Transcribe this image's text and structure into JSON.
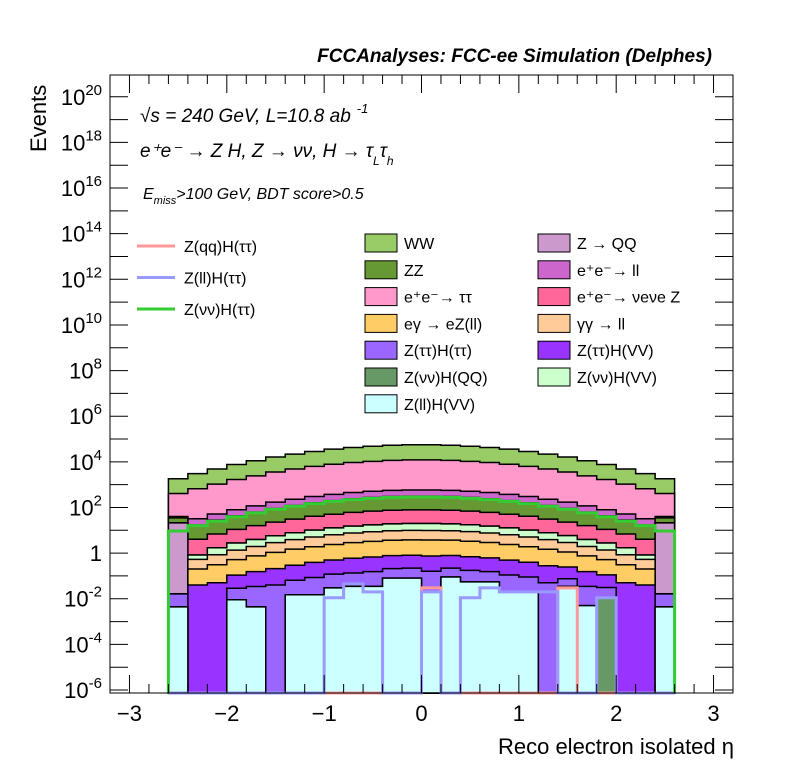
{
  "chart_data": {
    "type": "bar",
    "subtype": "stacked-histogram",
    "title": "FCCAnalyses: FCC-ee Simulation (Delphes)",
    "xlabel": "Reco electron isolated η",
    "ylabel": "Events",
    "xlim": [
      -3.2,
      3.2
    ],
    "ylim": [
      7.4e-07,
      9e+20
    ],
    "yscale": "log",
    "grid": false,
    "x_ticks": [
      "−3",
      "−2",
      "−1",
      "0",
      "1",
      "2",
      "3"
    ],
    "y_ticks": [
      {
        "base": "10",
        "exp": "20"
      },
      {
        "base": "10",
        "exp": "18"
      },
      {
        "base": "10",
        "exp": "16"
      },
      {
        "base": "10",
        "exp": "14"
      },
      {
        "base": "10",
        "exp": "12"
      },
      {
        "base": "10",
        "exp": "10"
      },
      {
        "base": "10",
        "exp": "8"
      },
      {
        "base": "10",
        "exp": "6"
      },
      {
        "base": "10",
        "exp": "4"
      },
      {
        "base": "10",
        "exp": "2"
      },
      {
        "base": "1",
        "exp": ""
      },
      {
        "base": "10",
        "exp": "-2"
      },
      {
        "base": "10",
        "exp": "-4"
      },
      {
        "base": "10",
        "exp": "-6"
      }
    ],
    "bin_edges_range": [
      -2.6,
      2.6
    ],
    "bin_width": 0.2,
    "annotations": {
      "energy": "√s = 240 GeV, L=10.8 ab",
      "energy_sup": "-1",
      "process_main": "e⁺e⁻ → Z H, Z → νν, H → τ",
      "process_sub1": "L",
      "process_tau": "τ",
      "process_sub2": "h",
      "cut_main": "E",
      "cut_sub": "miss",
      "cut_rest": ">100 GeV, BDT score>0.5"
    },
    "stack_bottom_to_top": [
      {
        "name": "Z(ll)H(VV)",
        "color": "#ccffff",
        "values": [
          0.0044,
          0,
          0,
          0.009,
          0.0044,
          0,
          0.015,
          0.015,
          0.03,
          0.035,
          0.035,
          0.08,
          0.08,
          0.02,
          0.09,
          0.055,
          0.055,
          0.02,
          0.02,
          0,
          0.035,
          0.005,
          0,
          0,
          0,
          0.0044
        ]
      },
      {
        "name": "Z(νν)H(QQ)",
        "color": "#669966",
        "values": [
          0,
          0,
          0,
          0,
          0,
          0,
          0,
          0,
          0,
          0,
          0,
          0,
          0,
          0,
          0,
          0,
          0,
          0,
          0,
          0,
          0,
          0,
          0.011,
          0,
          0,
          0
        ]
      },
      {
        "name": "Z(ττ)H(ττ)",
        "color": "#9966ff",
        "values": [
          0.012,
          0,
          0,
          0.02,
          0.03,
          0.04,
          0.05,
          0.07,
          0.09,
          0.1,
          0.12,
          0.13,
          0.14,
          0.14,
          0.13,
          0.12,
          0.1,
          0.09,
          0.07,
          0.05,
          0.04,
          0.03,
          0.02,
          0,
          0,
          0.012
        ]
      },
      {
        "name": "Z(ττ)H(VV)",
        "color": "#9933ff",
        "values": [
          0,
          0.04,
          0.05,
          0.08,
          0.12,
          0.17,
          0.23,
          0.31,
          0.38,
          0.46,
          0.52,
          0.57,
          0.59,
          0.59,
          0.57,
          0.52,
          0.46,
          0.38,
          0.31,
          0.23,
          0.17,
          0.12,
          0.08,
          0.05,
          0.04,
          0
        ]
      },
      {
        "name": "eγ → eZ(ll)",
        "color": "#ffcc66",
        "values": [
          0,
          0.16,
          0.26,
          0.41,
          0.6,
          0.87,
          1.2,
          1.5,
          1.9,
          2.3,
          2.6,
          2.9,
          3.0,
          3.0,
          2.9,
          2.6,
          2.3,
          1.9,
          1.5,
          1.2,
          0.87,
          0.6,
          0.41,
          0.26,
          0.16,
          0
        ]
      },
      {
        "name": "γγ → ll",
        "color": "#ffcc99",
        "values": [
          0,
          0.33,
          0.54,
          0.84,
          1.2,
          1.8,
          2.4,
          3.2,
          4.0,
          4.7,
          5.4,
          5.9,
          6.1,
          6.1,
          5.9,
          5.4,
          4.7,
          4.0,
          3.2,
          2.4,
          1.8,
          1.2,
          0.84,
          0.54,
          0.33,
          0
        ]
      },
      {
        "name": "Z(νν)H(VV)",
        "color": "#ccffcc",
        "values": [
          0,
          0.3,
          0.87,
          1.4,
          2.0,
          2.9,
          3.9,
          5.1,
          6.4,
          7.6,
          8.7,
          9.5,
          9.9,
          9.9,
          9.5,
          8.7,
          7.6,
          6.4,
          5.1,
          3.9,
          2.9,
          2.0,
          1.4,
          0.87,
          0.3,
          0
        ]
      },
      {
        "name": "Z → QQ",
        "color": "#cc99cc",
        "values": [
          21,
          0,
          0,
          0,
          0,
          0,
          0,
          0,
          0,
          0,
          0,
          0,
          0,
          0,
          0,
          0,
          0,
          0,
          0,
          0,
          0,
          0,
          0,
          0,
          0,
          21
        ]
      },
      {
        "name": "e⁺e⁻→ νeνe Z",
        "color": "#ff6699",
        "values": [
          0,
          3.2,
          5.2,
          8.2,
          12,
          17,
          23,
          31,
          38,
          46,
          52,
          57,
          59,
          59,
          57,
          52,
          46,
          38,
          31,
          23,
          17,
          12,
          8.2,
          5.2,
          3.2,
          0
        ]
      },
      {
        "name": "ZZ",
        "color": "#669933",
        "values": [
          14,
          13,
          21,
          32,
          47,
          68,
          92,
          120,
          150,
          180,
          205,
          225,
          234,
          234,
          225,
          205,
          180,
          150,
          120,
          92,
          68,
          47,
          32,
          21,
          13,
          14
        ]
      },
      {
        "name": "e⁺e⁻→ ll",
        "color": "#cc66cc",
        "values": [
          5,
          15,
          24,
          37,
          55,
          80,
          107,
          140,
          175,
          210,
          240,
          260,
          270,
          270,
          260,
          240,
          210,
          175,
          140,
          107,
          80,
          55,
          37,
          24,
          15,
          5
        ]
      },
      {
        "name": "e⁺e⁻→ ττ",
        "color": "#ff99cc",
        "values": [
          370,
          630,
          1000,
          1600,
          2300,
          3400,
          4600,
          6000,
          7500,
          8900,
          10000,
          11000,
          11600,
          11600,
          11000,
          10000,
          8900,
          7500,
          6000,
          4600,
          3400,
          2300,
          1600,
          1000,
          630,
          370
        ]
      },
      {
        "name": "WW",
        "color": "#99cc66",
        "values": [
          1400,
          2400,
          3800,
          6000,
          8800,
          12800,
          17000,
          22000,
          28000,
          33000,
          38000,
          42000,
          44000,
          44000,
          42000,
          38000,
          33000,
          28000,
          22000,
          17000,
          12800,
          8800,
          6000,
          3800,
          2400,
          1400
        ]
      }
    ],
    "signals": [
      {
        "name": "Z(qq)H(ττ)",
        "color": "#ff9999",
        "values": [
          0,
          0,
          0,
          0,
          0,
          0,
          0,
          0,
          0,
          0,
          0,
          0,
          0,
          0.03,
          0,
          0,
          0,
          0,
          0,
          0,
          0.03,
          0,
          0,
          0,
          0,
          0
        ]
      },
      {
        "name": "Z(ll)H(ττ)",
        "color": "#9999ff",
        "values": [
          0,
          0,
          0,
          0,
          0,
          0,
          0,
          0,
          0.011,
          0.045,
          0.02,
          0,
          0,
          0.02,
          0,
          0.011,
          0.03,
          0.02,
          0.02,
          0.02,
          0,
          0,
          0.011,
          0,
          0,
          0
        ]
      },
      {
        "name": "Z(νν)H(ττ)",
        "color": "#33cc33",
        "values": [
          9.3,
          16,
          25,
          39,
          58,
          84,
          113,
          148,
          186,
          220,
          252,
          276,
          287,
          287,
          276,
          252,
          220,
          186,
          148,
          113,
          84,
          58,
          39,
          25,
          16,
          9.3
        ]
      }
    ],
    "legend_signals": [
      "Z(qq)H(ττ)",
      "Z(ll)H(ττ)",
      "Z(νν)H(ττ)"
    ],
    "legend_col1": [
      "WW",
      "ZZ",
      "e⁺e⁻→ ττ",
      "eγ → eZ(ll)",
      "Z(ττ)H(ττ)",
      "Z(νν)H(QQ)",
      "Z(ll)H(VV)"
    ],
    "legend_col2": [
      "Z → QQ",
      "e⁺e⁻→ ll",
      "e⁺e⁻→ νeνe Z",
      "γγ → ll",
      "Z(ττ)H(VV)",
      "Z(νν)H(VV)"
    ],
    "legend_placement": "top-center"
  }
}
